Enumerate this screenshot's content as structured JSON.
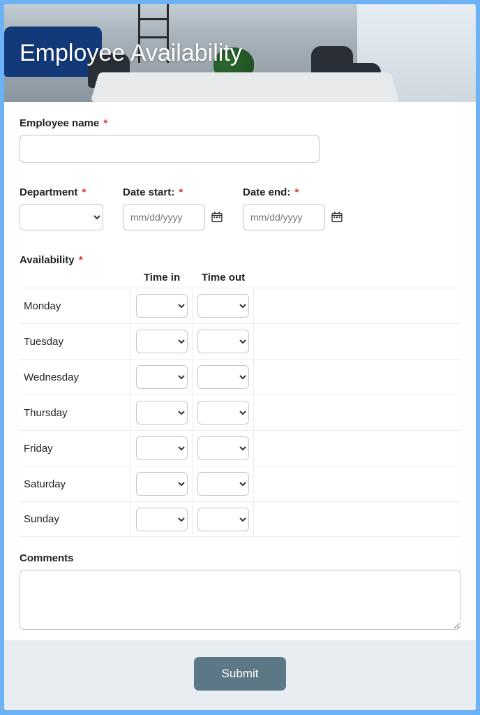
{
  "header": {
    "title": "Employee Availability",
    "title_color": "#ffffff",
    "title_fontsize": 34
  },
  "colors": {
    "page_border": "#6cb2f5",
    "background": "#ffffff",
    "footer_bg": "#e7edf1",
    "submit_bg": "#5c7886",
    "submit_text": "#ffffff",
    "required_star": "#e03131",
    "input_border": "#c7c7c7",
    "grid_border": "#ececec",
    "label_text": "#222222"
  },
  "fields": {
    "employee_name": {
      "label": "Employee name",
      "required": true,
      "value": ""
    },
    "department": {
      "label": "Department",
      "required": true,
      "value": ""
    },
    "date_start": {
      "label": "Date start:",
      "required": true,
      "placeholder": "mm/dd/yyyy",
      "value": ""
    },
    "date_end": {
      "label": "Date end:",
      "required": true,
      "placeholder": "mm/dd/yyyy",
      "value": ""
    },
    "availability": {
      "label": "Availability",
      "required": true
    },
    "comments": {
      "label": "Comments",
      "value": ""
    }
  },
  "availability_table": {
    "columns": {
      "time_in": "Time in",
      "time_out": "Time out"
    },
    "days": [
      {
        "name": "Monday",
        "time_in": "",
        "time_out": ""
      },
      {
        "name": "Tuesday",
        "time_in": "",
        "time_out": ""
      },
      {
        "name": "Wednesday",
        "time_in": "",
        "time_out": ""
      },
      {
        "name": "Thursday",
        "time_in": "",
        "time_out": ""
      },
      {
        "name": "Friday",
        "time_in": "",
        "time_out": ""
      },
      {
        "name": "Saturday",
        "time_in": "",
        "time_out": ""
      },
      {
        "name": "Sunday",
        "time_in": "",
        "time_out": ""
      }
    ]
  },
  "submit": {
    "label": "Submit"
  }
}
